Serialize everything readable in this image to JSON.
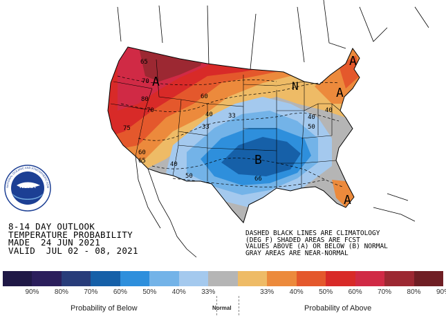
{
  "outlook": {
    "line1": "8-14 DAY OUTLOOK",
    "line2": "TEMPERATURE PROBABILITY",
    "line3": "MADE  24 JUN 2021",
    "line4": "VALID  JUL 02 - 08, 2021"
  },
  "note": {
    "line1": "DASHED BLACK LINES ARE CLIMATOLOGY",
    "line2": "(DEG F) SHADED AREAS ARE FCST",
    "line3": "VALUES ABOVE (A) OR BELOW (B) NORMAL",
    "line4": "GRAY AREAS ARE NEAR-NORMAL"
  },
  "logo": {
    "text": "NOAA",
    "ring_text": "NATIONAL OCEANIC AND ATMOSPHERIC ADMINISTRATION · U.S. DEPARTMENT OF COMMERCE"
  },
  "map_labels": {
    "region_letters": [
      "A",
      "A",
      "A",
      "A",
      "B",
      "N"
    ],
    "contour_values": [
      "65",
      "70",
      "80",
      "70",
      "60",
      "40",
      "33",
      "33",
      "40",
      "50",
      "40",
      "50",
      "40",
      "66",
      "75",
      "60",
      "65"
    ]
  },
  "legend": {
    "colors": [
      "#1f1846",
      "#2b1e5c",
      "#283c7a",
      "#1660a8",
      "#2e8fdc",
      "#73b3e8",
      "#a4c9ee",
      "#b5b5b5",
      "#eebb66",
      "#ec8a3c",
      "#e4582c",
      "#d82a28",
      "#d02a45",
      "#9c2832",
      "#6f1e24"
    ],
    "pct_labels": [
      "90%",
      "80%",
      "70%",
      "60%",
      "50%",
      "40%",
      "33%",
      "33%",
      "40%",
      "50%",
      "60%",
      "70%",
      "80%",
      "90%"
    ],
    "below_caption": "Probability of Below",
    "normal_caption": "Normal",
    "above_caption": "Probability of Above"
  }
}
